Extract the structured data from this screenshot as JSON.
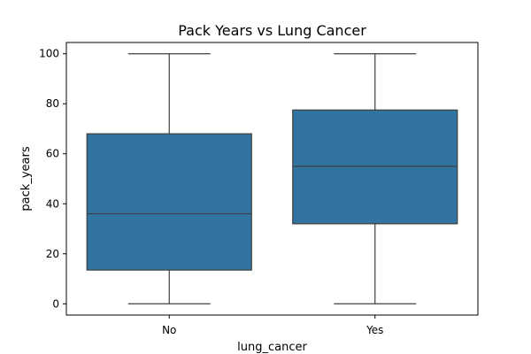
{
  "chart_data": {
    "type": "box",
    "title": "Pack Years vs Lung Cancer",
    "xlabel": "lung_cancer",
    "ylabel": "pack_years",
    "categories": [
      "No",
      "Yes"
    ],
    "ylim": [
      -4.5,
      104.5
    ],
    "yticks": [
      0,
      20,
      40,
      60,
      80,
      100
    ],
    "box_color": "#3274a1",
    "line_color": "#3f3f3f",
    "boxes": [
      {
        "category": "No",
        "whisker_low": 0,
        "q1": 13.5,
        "median": 36,
        "q3": 68,
        "whisker_high": 100
      },
      {
        "category": "Yes",
        "whisker_low": 0,
        "q1": 32,
        "median": 55,
        "q3": 77.5,
        "whisker_high": 100
      }
    ],
    "grid": false,
    "legend": "none"
  }
}
